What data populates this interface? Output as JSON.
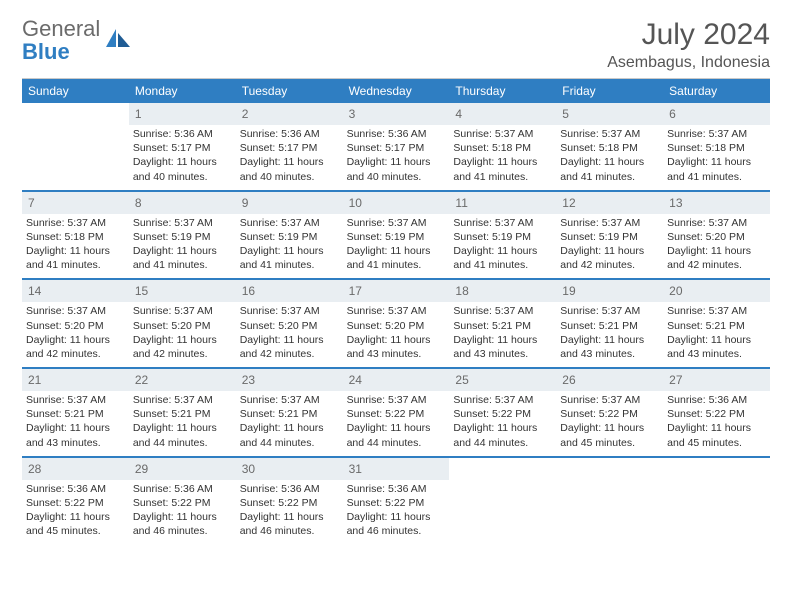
{
  "logo": {
    "general": "General",
    "blue": "Blue"
  },
  "header": {
    "month": "July 2024",
    "location": "Asembagus, Indonesia"
  },
  "colors": {
    "brand_blue": "#2f7ec2",
    "daynum_bg": "#e9eef2",
    "text_gray": "#555555",
    "logo_gray": "#6b6b6b"
  },
  "weekdays": [
    "Sunday",
    "Monday",
    "Tuesday",
    "Wednesday",
    "Thursday",
    "Friday",
    "Saturday"
  ],
  "weeks": [
    [
      {
        "n": "",
        "sr": "",
        "ss": "",
        "dl": ""
      },
      {
        "n": "1",
        "sr": "Sunrise: 5:36 AM",
        "ss": "Sunset: 5:17 PM",
        "dl": "Daylight: 11 hours and 40 minutes."
      },
      {
        "n": "2",
        "sr": "Sunrise: 5:36 AM",
        "ss": "Sunset: 5:17 PM",
        "dl": "Daylight: 11 hours and 40 minutes."
      },
      {
        "n": "3",
        "sr": "Sunrise: 5:36 AM",
        "ss": "Sunset: 5:17 PM",
        "dl": "Daylight: 11 hours and 40 minutes."
      },
      {
        "n": "4",
        "sr": "Sunrise: 5:37 AM",
        "ss": "Sunset: 5:18 PM",
        "dl": "Daylight: 11 hours and 41 minutes."
      },
      {
        "n": "5",
        "sr": "Sunrise: 5:37 AM",
        "ss": "Sunset: 5:18 PM",
        "dl": "Daylight: 11 hours and 41 minutes."
      },
      {
        "n": "6",
        "sr": "Sunrise: 5:37 AM",
        "ss": "Sunset: 5:18 PM",
        "dl": "Daylight: 11 hours and 41 minutes."
      }
    ],
    [
      {
        "n": "7",
        "sr": "Sunrise: 5:37 AM",
        "ss": "Sunset: 5:18 PM",
        "dl": "Daylight: 11 hours and 41 minutes."
      },
      {
        "n": "8",
        "sr": "Sunrise: 5:37 AM",
        "ss": "Sunset: 5:19 PM",
        "dl": "Daylight: 11 hours and 41 minutes."
      },
      {
        "n": "9",
        "sr": "Sunrise: 5:37 AM",
        "ss": "Sunset: 5:19 PM",
        "dl": "Daylight: 11 hours and 41 minutes."
      },
      {
        "n": "10",
        "sr": "Sunrise: 5:37 AM",
        "ss": "Sunset: 5:19 PM",
        "dl": "Daylight: 11 hours and 41 minutes."
      },
      {
        "n": "11",
        "sr": "Sunrise: 5:37 AM",
        "ss": "Sunset: 5:19 PM",
        "dl": "Daylight: 11 hours and 41 minutes."
      },
      {
        "n": "12",
        "sr": "Sunrise: 5:37 AM",
        "ss": "Sunset: 5:19 PM",
        "dl": "Daylight: 11 hours and 42 minutes."
      },
      {
        "n": "13",
        "sr": "Sunrise: 5:37 AM",
        "ss": "Sunset: 5:20 PM",
        "dl": "Daylight: 11 hours and 42 minutes."
      }
    ],
    [
      {
        "n": "14",
        "sr": "Sunrise: 5:37 AM",
        "ss": "Sunset: 5:20 PM",
        "dl": "Daylight: 11 hours and 42 minutes."
      },
      {
        "n": "15",
        "sr": "Sunrise: 5:37 AM",
        "ss": "Sunset: 5:20 PM",
        "dl": "Daylight: 11 hours and 42 minutes."
      },
      {
        "n": "16",
        "sr": "Sunrise: 5:37 AM",
        "ss": "Sunset: 5:20 PM",
        "dl": "Daylight: 11 hours and 42 minutes."
      },
      {
        "n": "17",
        "sr": "Sunrise: 5:37 AM",
        "ss": "Sunset: 5:20 PM",
        "dl": "Daylight: 11 hours and 43 minutes."
      },
      {
        "n": "18",
        "sr": "Sunrise: 5:37 AM",
        "ss": "Sunset: 5:21 PM",
        "dl": "Daylight: 11 hours and 43 minutes."
      },
      {
        "n": "19",
        "sr": "Sunrise: 5:37 AM",
        "ss": "Sunset: 5:21 PM",
        "dl": "Daylight: 11 hours and 43 minutes."
      },
      {
        "n": "20",
        "sr": "Sunrise: 5:37 AM",
        "ss": "Sunset: 5:21 PM",
        "dl": "Daylight: 11 hours and 43 minutes."
      }
    ],
    [
      {
        "n": "21",
        "sr": "Sunrise: 5:37 AM",
        "ss": "Sunset: 5:21 PM",
        "dl": "Daylight: 11 hours and 43 minutes."
      },
      {
        "n": "22",
        "sr": "Sunrise: 5:37 AM",
        "ss": "Sunset: 5:21 PM",
        "dl": "Daylight: 11 hours and 44 minutes."
      },
      {
        "n": "23",
        "sr": "Sunrise: 5:37 AM",
        "ss": "Sunset: 5:21 PM",
        "dl": "Daylight: 11 hours and 44 minutes."
      },
      {
        "n": "24",
        "sr": "Sunrise: 5:37 AM",
        "ss": "Sunset: 5:22 PM",
        "dl": "Daylight: 11 hours and 44 minutes."
      },
      {
        "n": "25",
        "sr": "Sunrise: 5:37 AM",
        "ss": "Sunset: 5:22 PM",
        "dl": "Daylight: 11 hours and 44 minutes."
      },
      {
        "n": "26",
        "sr": "Sunrise: 5:37 AM",
        "ss": "Sunset: 5:22 PM",
        "dl": "Daylight: 11 hours and 45 minutes."
      },
      {
        "n": "27",
        "sr": "Sunrise: 5:36 AM",
        "ss": "Sunset: 5:22 PM",
        "dl": "Daylight: 11 hours and 45 minutes."
      }
    ],
    [
      {
        "n": "28",
        "sr": "Sunrise: 5:36 AM",
        "ss": "Sunset: 5:22 PM",
        "dl": "Daylight: 11 hours and 45 minutes."
      },
      {
        "n": "29",
        "sr": "Sunrise: 5:36 AM",
        "ss": "Sunset: 5:22 PM",
        "dl": "Daylight: 11 hours and 46 minutes."
      },
      {
        "n": "30",
        "sr": "Sunrise: 5:36 AM",
        "ss": "Sunset: 5:22 PM",
        "dl": "Daylight: 11 hours and 46 minutes."
      },
      {
        "n": "31",
        "sr": "Sunrise: 5:36 AM",
        "ss": "Sunset: 5:22 PM",
        "dl": "Daylight: 11 hours and 46 minutes."
      },
      {
        "n": "",
        "sr": "",
        "ss": "",
        "dl": ""
      },
      {
        "n": "",
        "sr": "",
        "ss": "",
        "dl": ""
      },
      {
        "n": "",
        "sr": "",
        "ss": "",
        "dl": ""
      }
    ]
  ]
}
